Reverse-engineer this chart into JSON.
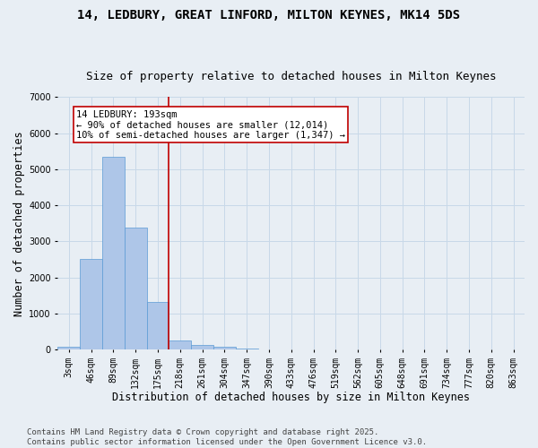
{
  "title_line1": "14, LEDBURY, GREAT LINFORD, MILTON KEYNES, MK14 5DS",
  "title_line2": "Size of property relative to detached houses in Milton Keynes",
  "xlabel": "Distribution of detached houses by size in Milton Keynes",
  "ylabel": "Number of detached properties",
  "categories": [
    "3sqm",
    "46sqm",
    "89sqm",
    "132sqm",
    "175sqm",
    "218sqm",
    "261sqm",
    "304sqm",
    "347sqm",
    "390sqm",
    "433sqm",
    "476sqm",
    "519sqm",
    "562sqm",
    "605sqm",
    "648sqm",
    "691sqm",
    "734sqm",
    "777sqm",
    "820sqm",
    "863sqm"
  ],
  "values": [
    75,
    2500,
    5350,
    3370,
    1310,
    240,
    120,
    70,
    25,
    5,
    2,
    0,
    0,
    0,
    0,
    0,
    0,
    0,
    0,
    0,
    0
  ],
  "bar_color": "#aec6e8",
  "bar_edge_color": "#5b9bd5",
  "vline_index": 4.5,
  "vline_color": "#c00000",
  "annotation_text": "14 LEDBURY: 193sqm\n← 90% of detached houses are smaller (12,014)\n10% of semi-detached houses are larger (1,347) →",
  "annotation_box_facecolor": "#ffffff",
  "annotation_box_edgecolor": "#c00000",
  "ylim": [
    0,
    7000
  ],
  "yticks": [
    0,
    1000,
    2000,
    3000,
    4000,
    5000,
    6000,
    7000
  ],
  "grid_color": "#c8d8e8",
  "background_color": "#e8eef4",
  "footer_line1": "Contains HM Land Registry data © Crown copyright and database right 2025.",
  "footer_line2": "Contains public sector information licensed under the Open Government Licence v3.0.",
  "title_fontsize": 10,
  "subtitle_fontsize": 9,
  "axis_label_fontsize": 8.5,
  "tick_fontsize": 7,
  "annotation_fontsize": 7.5,
  "footer_fontsize": 6.5
}
